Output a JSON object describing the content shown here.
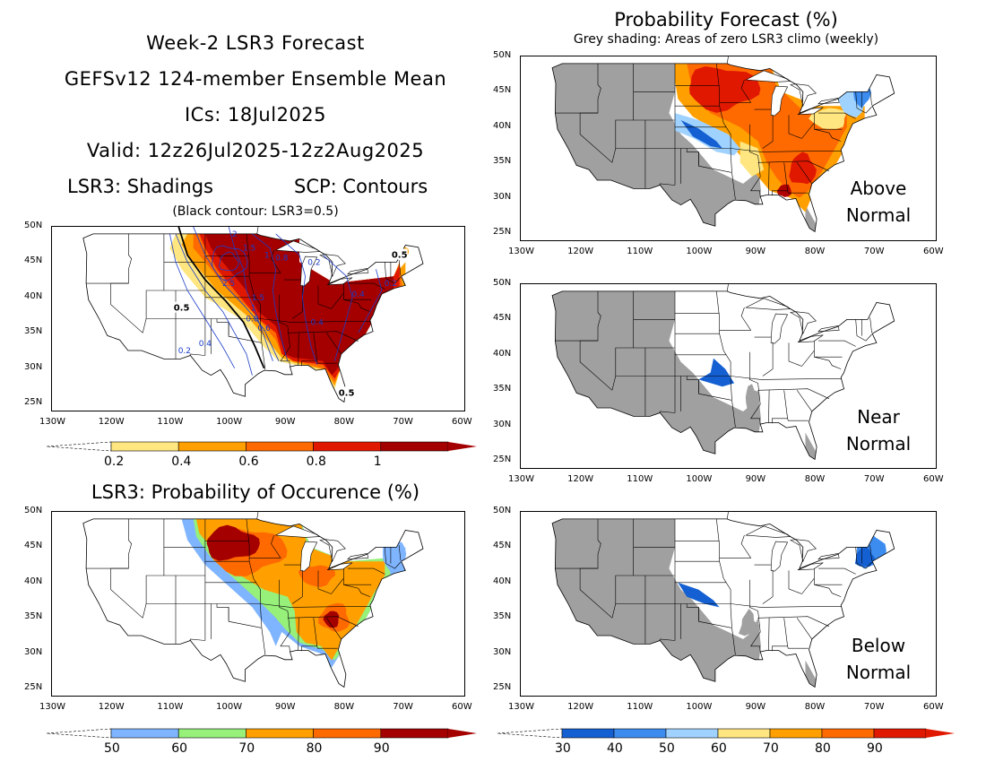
{
  "header": {
    "lines": [
      "Week-2 LSR3 Forecast",
      "GEFSv12 124-member Ensemble Mean",
      "ICs: 18Jul2025",
      "Valid: 12z26Jul2025-12z2Aug2025",
      "LSR3: Shadings"
    ],
    "scp_label": "SCP: Contours",
    "note": "(Black contour: LSR3=0.5)"
  },
  "prob_forecast": {
    "title": "Probability Forecast (%)",
    "subtitle": "Grey shading: Areas of zero LSR3 climo (weekly)"
  },
  "occurrence_title": "LSR3: Probability of Occurence (%)",
  "axes": {
    "lat_labels": [
      "50N",
      "45N",
      "40N",
      "35N",
      "30N",
      "25N"
    ],
    "lon_labels": [
      "130W",
      "120W",
      "110W",
      "100W",
      "90W",
      "80W",
      "70W",
      "60W"
    ]
  },
  "panels": [
    {
      "id": "lsr3-mean",
      "contour_labels": [
        "2",
        "1.5",
        "1",
        "0.8",
        "2.5",
        "1.5",
        "1",
        "0.8",
        "0.5",
        "0.6",
        "0.4",
        "0.4",
        "0.4",
        "0.2",
        "0.2",
        "0.2",
        "0.5",
        "0.5"
      ]
    },
    {
      "id": "prob-occurrence"
    },
    {
      "id": "above-normal",
      "label": [
        "Above",
        "Normal"
      ]
    },
    {
      "id": "near-normal",
      "label": [
        "Near",
        "Normal"
      ]
    },
    {
      "id": "below-normal",
      "label": [
        "Below",
        "Normal"
      ]
    }
  ],
  "colorbars": {
    "lsr3": {
      "labels": [
        "0.2",
        "0.4",
        "0.6",
        "0.8",
        "1"
      ],
      "colors": [
        "#ffe680",
        "#ffa000",
        "#ff6a00",
        "#e11800",
        "#a50000"
      ]
    },
    "occurrence": {
      "labels": [
        "50",
        "60",
        "70",
        "80",
        "90"
      ],
      "colors": [
        "#7fb4ff",
        "#96f07a",
        "#ffa000",
        "#ff6a00",
        "#a50000"
      ]
    },
    "category": {
      "labels": [
        "30",
        "40",
        "50",
        "60",
        "70",
        "80",
        "90"
      ],
      "colors": [
        "#1460d2",
        "#3c8cf0",
        "#a0d2ff",
        "#ffe680",
        "#ffa000",
        "#ff6a00",
        "#e11800"
      ]
    }
  },
  "colors": {
    "grey": "#a0a0a0",
    "contour_blue": "#1a3cc8"
  }
}
